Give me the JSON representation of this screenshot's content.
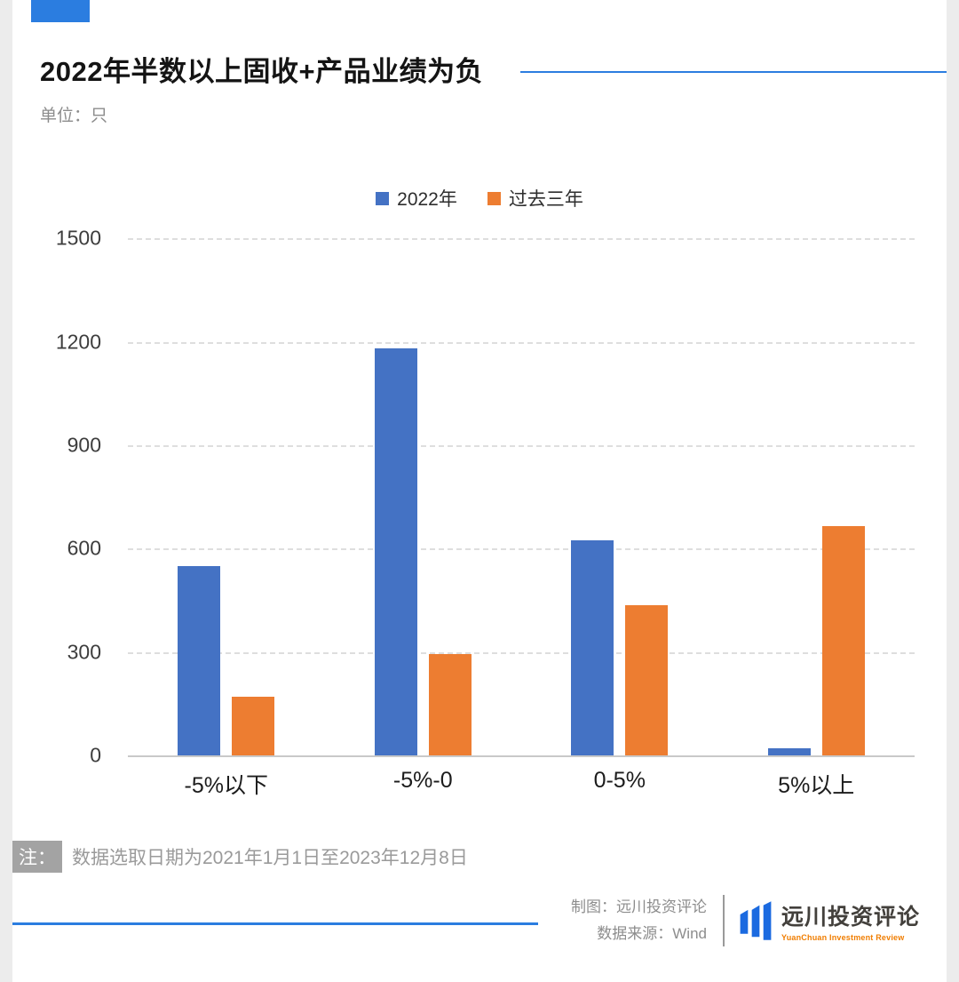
{
  "page": {
    "title": "2022年半数以上固收+产品业绩为负",
    "unit_label": "单位：只",
    "note_tag": "注：",
    "note_text": "数据选取日期为2021年1月1日至2023年12月8日",
    "credits": {
      "made_by": "制图：远川投资评论",
      "source": "数据来源：Wind"
    },
    "logo": {
      "name": "远川投资评论",
      "subtitle": "YuanChuan Investment Review"
    }
  },
  "colors": {
    "series_blue": "#4472C4",
    "series_orange": "#ED7D31",
    "accent_blue": "#2b7de0",
    "logo_blue": "#1b6ae0",
    "logo_orange": "#f07d00",
    "grid": "#dedede"
  },
  "chart_data": {
    "type": "bar",
    "categories": [
      "-5%以下",
      "-5%-0",
      "0-5%",
      "5%以上"
    ],
    "series": [
      {
        "name": "2022年",
        "color": "#4472C4",
        "values": [
          550,
          1180,
          625,
          20
        ]
      },
      {
        "name": "过去三年",
        "color": "#ED7D31",
        "values": [
          170,
          295,
          435,
          665
        ]
      }
    ],
    "title": "2022年半数以上固收+产品业绩为负",
    "xlabel": "",
    "ylabel": "只",
    "ylim": [
      0,
      1500
    ],
    "yticks": [
      0,
      300,
      600,
      900,
      1200,
      1500
    ],
    "grid": true,
    "legend_position": "top-center"
  }
}
